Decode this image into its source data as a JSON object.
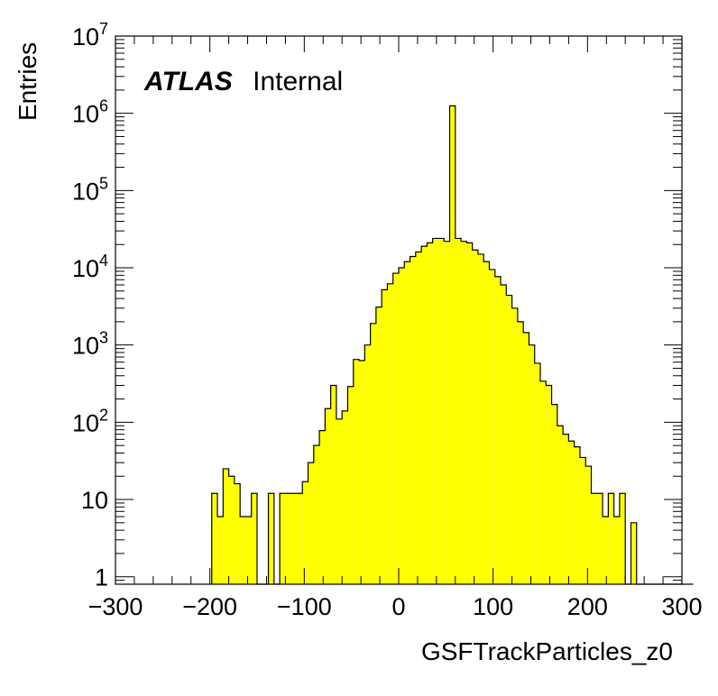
{
  "chart_data": {
    "type": "bar",
    "histogram": true,
    "xlabel": "GSFTrackParticles_z0",
    "ylabel": "Entries",
    "xlim": [
      -300,
      300
    ],
    "ylim": [
      0.8,
      10000000
    ],
    "yscale": "log",
    "xticks": [
      "−300",
      "−200",
      "−100",
      "0",
      "100",
      "200",
      "300"
    ],
    "yticks": [
      {
        "value": 1,
        "base": "1",
        "exp": ""
      },
      {
        "value": 10,
        "base": "10",
        "exp": ""
      },
      {
        "value": 100,
        "base": "10",
        "exp": "2"
      },
      {
        "value": 1000,
        "base": "10",
        "exp": "3"
      },
      {
        "value": 10000,
        "base": "10",
        "exp": "4"
      },
      {
        "value": 100000,
        "base": "10",
        "exp": "5"
      },
      {
        "value": 1000000,
        "base": "10",
        "exp": "6"
      },
      {
        "value": 10000000,
        "base": "10",
        "exp": "7"
      }
    ],
    "bin_width": 6,
    "bin_edges_start": -198,
    "values": [
      12,
      6,
      25,
      20,
      16,
      6,
      6,
      12,
      0,
      0,
      12,
      0,
      12,
      12,
      12,
      12,
      17,
      30,
      50,
      78,
      150,
      300,
      110,
      140,
      290,
      650,
      630,
      1000,
      1900,
      3100,
      5200,
      6200,
      8500,
      10000,
      12000,
      14000,
      16000,
      19000,
      21000,
      24000,
      24000,
      22000,
      1250000,
      24000,
      22000,
      21000,
      17000,
      15000,
      12000,
      9500,
      7700,
      6000,
      4400,
      3000,
      2000,
      1450,
      1000,
      580,
      340,
      300,
      170,
      90,
      70,
      57,
      48,
      35,
      27,
      12,
      12,
      6,
      12,
      6,
      12,
      0,
      5,
      0,
      0,
      0,
      0,
      0,
      0,
      0,
      0,
      0,
      0
    ],
    "fill_color": "#ffff00",
    "line_color": "#000000",
    "grid": false,
    "legend": false
  },
  "label": {
    "bold": "ATLAS",
    "normal": "Internal"
  }
}
